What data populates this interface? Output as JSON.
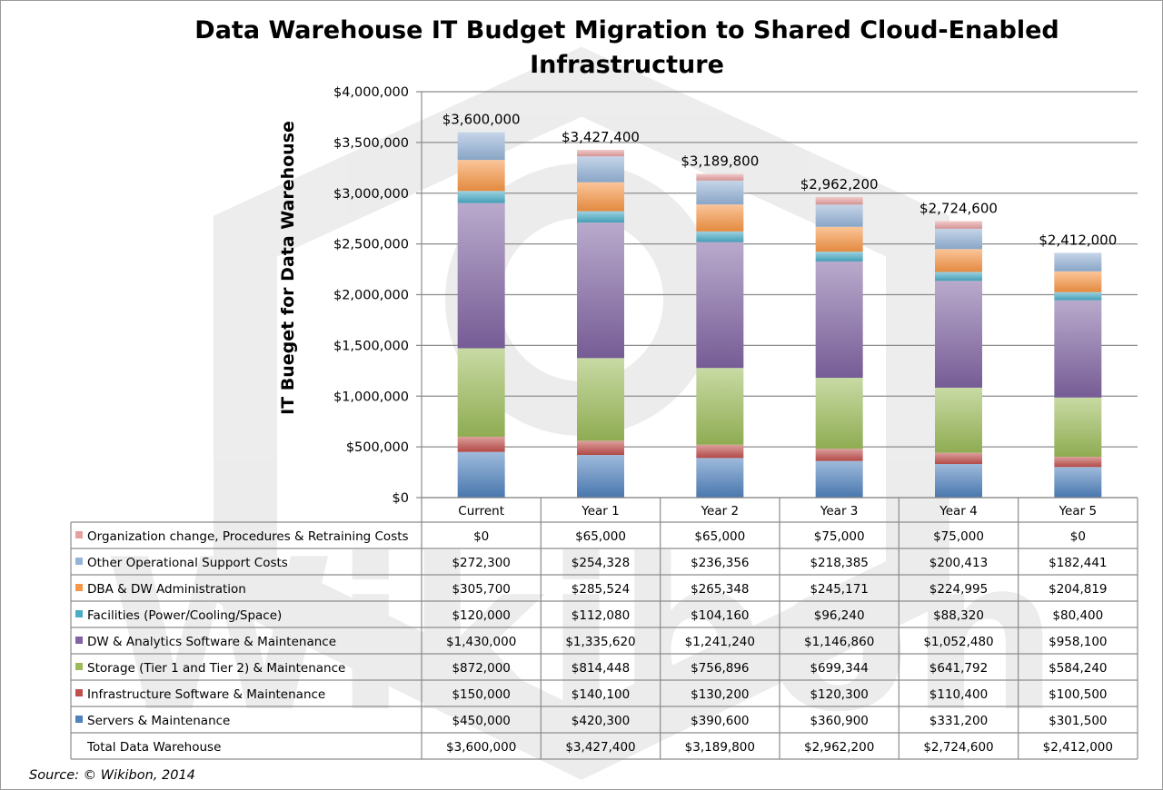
{
  "chart_data": {
    "type": "bar",
    "stacked": true,
    "title": "Data Warehouse IT Budget Migration to Shared Cloud-Enabled Infrastructure",
    "title_lines": [
      "Data Warehouse IT Budget Migration to Shared Cloud-Enabled",
      "Infrastructure"
    ],
    "xlabel": "",
    "ylabel": "IT Bueget for Data Warehouse",
    "ylim": [
      0,
      4000000
    ],
    "yticks": [
      0,
      500000,
      1000000,
      1500000,
      2000000,
      2500000,
      3000000,
      3500000,
      4000000
    ],
    "ytick_labels": [
      "$0",
      "$500,000",
      "$1,000,000",
      "$1,500,000",
      "$2,000,000",
      "$2,500,000",
      "$3,000,000",
      "$3,500,000",
      "$4,000,000"
    ],
    "grid": true,
    "legend": "data-table-below",
    "categories": [
      "Current",
      "Year 1",
      "Year 2",
      "Year 3",
      "Year 4",
      "Year 5"
    ],
    "series": [
      {
        "name": "Servers & Maintenance",
        "color": "#4f81bd",
        "values": [
          450000,
          420300,
          390600,
          360900,
          331200,
          301500
        ],
        "labels": [
          "$450,000",
          "$420,300",
          "$390,600",
          "$360,900",
          "$331,200",
          "$301,500"
        ]
      },
      {
        "name": "Infrastructure Software & Maintenance",
        "color": "#c0504d",
        "values": [
          150000,
          140100,
          130200,
          120300,
          110400,
          100500
        ],
        "labels": [
          "$150,000",
          "$140,100",
          "$130,200",
          "$120,300",
          "$110,400",
          "$100,500"
        ]
      },
      {
        "name": "Storage (Tier 1 and Tier 2) & Maintenance",
        "color": "#9bbb59",
        "values": [
          872000,
          814448,
          756896,
          699344,
          641792,
          584240
        ],
        "labels": [
          "$872,000",
          "$814,448",
          "$756,896",
          "$699,344",
          "$641,792",
          "$584,240"
        ]
      },
      {
        "name": "DW & Analytics Software & Maintenance",
        "color": "#8064a2",
        "values": [
          1430000,
          1335620,
          1241240,
          1146860,
          1052480,
          958100
        ],
        "labels": [
          "$1,430,000",
          "$1,335,620",
          "$1,241,240",
          "$1,146,860",
          "$1,052,480",
          "$958,100"
        ]
      },
      {
        "name": "Facilities (Power/Cooling/Space)",
        "color": "#4bacc6",
        "values": [
          120000,
          112080,
          104160,
          96240,
          88320,
          80400
        ],
        "labels": [
          "$120,000",
          "$112,080",
          "$104,160",
          "$96,240",
          "$88,320",
          "$80,400"
        ]
      },
      {
        "name": "DBA & DW Administration",
        "color": "#f79646",
        "values": [
          305700,
          285524,
          265348,
          245171,
          224995,
          204819
        ],
        "labels": [
          "$305,700",
          "$285,524",
          "$265,348",
          "$245,171",
          "$224,995",
          "$204,819"
        ]
      },
      {
        "name": "Other Operational Support Costs",
        "color": "#95b3d7",
        "values": [
          272300,
          254328,
          236356,
          218385,
          200413,
          182441
        ],
        "labels": [
          "$272,300",
          "$254,328",
          "$236,356",
          "$218,385",
          "$200,413",
          "$182,441"
        ]
      },
      {
        "name": "Organization change, Procedures & Retraining Costs",
        "color": "#e6a0a0",
        "values": [
          0,
          65000,
          65000,
          75000,
          75000,
          0
        ],
        "labels": [
          "$0",
          "$65,000",
          "$65,000",
          "$75,000",
          "$75,000",
          "$0"
        ]
      }
    ],
    "totals": {
      "name": "Total Data Warehouse",
      "values": [
        3600000,
        3427400,
        3189800,
        2962200,
        2724600,
        2412000
      ],
      "labels": [
        "$3,600,000",
        "$3,427,400",
        "$3,189,800",
        "$2,962,200",
        "$2,724,600",
        "$2,412,000"
      ]
    },
    "source": "Source: © Wikibon, 2014",
    "watermark": "Wikibon"
  }
}
